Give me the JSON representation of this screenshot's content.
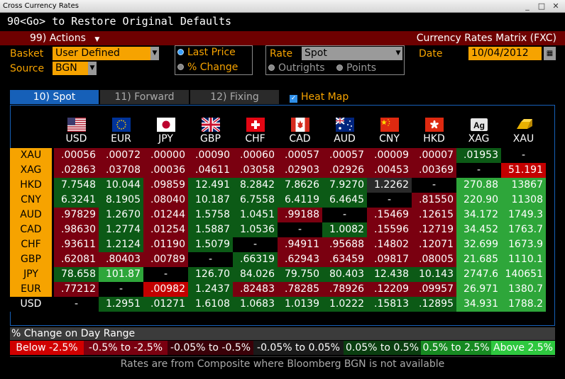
{
  "window": {
    "title": "Cross Currency Rates"
  },
  "command_line": "90<Go> to Restore Original Defaults",
  "actions_bar": {
    "actions_label": "99) Actions",
    "title": "Currency Rates Matrix (FXC)"
  },
  "controls": {
    "basket_label": "Basket",
    "basket_value": "User Defined",
    "source_label": "Source",
    "source_value": "BGN",
    "display_options": [
      "Last Price",
      "% Change"
    ],
    "display_selected": "Last Price",
    "rate_label": "Rate",
    "rate_value": "Spot",
    "rate_modes": [
      "Outrights",
      "Points"
    ],
    "date_label": "Date",
    "date_value": "10/04/2012"
  },
  "tabs": [
    "10) Spot",
    "11) Forward",
    "12) Fixing"
  ],
  "active_tab": "10) Spot",
  "heat_map_label": "Heat Map",
  "heat_map_checked": true,
  "columns": [
    "USD",
    "EUR",
    "JPY",
    "GBP",
    "CHF",
    "CAD",
    "AUD",
    "CNY",
    "HKD",
    "XAG",
    "XAU"
  ],
  "rows": [
    {
      "label": "XAU",
      "cells": [
        ".00056",
        ".00072",
        ".00000",
        ".00090",
        ".00060",
        ".00057",
        ".00057",
        ".00009",
        ".00007",
        ".01953",
        "-"
      ]
    },
    {
      "label": "XAG",
      "cells": [
        ".02863",
        ".03708",
        ".00036",
        ".04611",
        ".03058",
        ".02903",
        ".02926",
        ".00453",
        ".00369",
        "-",
        "51.191"
      ]
    },
    {
      "label": "HKD",
      "cells": [
        "7.7548",
        "10.044",
        ".09859",
        "12.491",
        "8.2842",
        "7.8626",
        "7.9270",
        "1.2262",
        "-",
        "270.88",
        "13867"
      ]
    },
    {
      "label": "CNY",
      "cells": [
        "6.3241",
        "8.1905",
        ".08040",
        "10.187",
        "6.7558",
        "6.4119",
        "6.4645",
        "-",
        ".81550",
        "220.90",
        "11308"
      ]
    },
    {
      "label": "AUD",
      "cells": [
        ".97829",
        "1.2670",
        ".01244",
        "1.5758",
        "1.0451",
        ".99188",
        "-",
        ".15469",
        ".12615",
        "34.172",
        "1749.3"
      ]
    },
    {
      "label": "CAD",
      "cells": [
        ".98630",
        "1.2774",
        ".01254",
        "1.5887",
        "1.0536",
        "-",
        "1.0082",
        ".15596",
        ".12719",
        "34.452",
        "1763.7"
      ]
    },
    {
      "label": "CHF",
      "cells": [
        ".93611",
        "1.2124",
        ".01190",
        "1.5079",
        "-",
        ".94911",
        ".95688",
        ".14802",
        ".12071",
        "32.699",
        "1673.9"
      ]
    },
    {
      "label": "GBP",
      "cells": [
        ".62081",
        ".80403",
        ".00789",
        "-",
        ".66319",
        ".62943",
        ".63459",
        ".09817",
        ".08005",
        "21.685",
        "1110.1"
      ]
    },
    {
      "label": "JPY",
      "cells": [
        "78.658",
        "101.87",
        "-",
        "126.70",
        "84.026",
        "79.750",
        "80.403",
        "12.438",
        "10.143",
        "2747.6",
        "140651"
      ]
    },
    {
      "label": "EUR",
      "cells": [
        ".77212",
        "-",
        ".00982",
        "1.2437",
        ".82483",
        ".78285",
        ".78926",
        ".12209",
        ".09957",
        "26.971",
        "1380.7"
      ]
    },
    {
      "label": "USD",
      "cells": [
        "-",
        "1.2951",
        ".01271",
        "1.6108",
        "1.0683",
        "1.0139",
        "1.0222",
        ".15813",
        ".12895",
        "34.931",
        "1788.2"
      ]
    }
  ],
  "heat_levels": [
    [
      2,
      2,
      2,
      2,
      2,
      2,
      2,
      2,
      2,
      4,
      0
    ],
    [
      2,
      2,
      2,
      2,
      2,
      2,
      2,
      2,
      2,
      0,
      1
    ],
    [
      4,
      4,
      2,
      4,
      4,
      4,
      4,
      3,
      0,
      5,
      5
    ],
    [
      4,
      4,
      2,
      4,
      4,
      4,
      4,
      0,
      2,
      5,
      5
    ],
    [
      2,
      4,
      2,
      4,
      4,
      2,
      0,
      2,
      2,
      5,
      5
    ],
    [
      2,
      4,
      2,
      4,
      4,
      0,
      4,
      2,
      2,
      5,
      5
    ],
    [
      2,
      4,
      2,
      4,
      0,
      2,
      2,
      2,
      2,
      5,
      5
    ],
    [
      2,
      2,
      2,
      0,
      4,
      2,
      2,
      2,
      2,
      5,
      5
    ],
    [
      4,
      5,
      0,
      4,
      4,
      4,
      4,
      4,
      4,
      5,
      5
    ],
    [
      2,
      0,
      1,
      4,
      2,
      2,
      2,
      2,
      2,
      5,
      5
    ],
    [
      0,
      4,
      4,
      4,
      4,
      4,
      4,
      4,
      4,
      5,
      5
    ]
  ],
  "heat_colors": {
    "0": "#000000",
    "1": "#c40000",
    "2": "#7a0010",
    "3": "#2a2a2a",
    "4": "#0c5a16",
    "5": "#2ea63a"
  },
  "legend": {
    "title": "% Change on Day Range",
    "items": [
      "Below -2.5%",
      "-0.5% to -2.5%",
      "-0.05% to -0.5%",
      "-0.05% to 0.05%",
      "0.05% to 0.5%",
      "0.5% to 2.5%",
      "Above 2.5%"
    ],
    "colors": [
      "#d00000",
      "#7a0010",
      "#3a0008",
      "#1a1a1a",
      "#0a3e10",
      "#178a22",
      "#2ec83f"
    ]
  },
  "footer": "Rates are from Composite where Bloomberg BGN is not available"
}
